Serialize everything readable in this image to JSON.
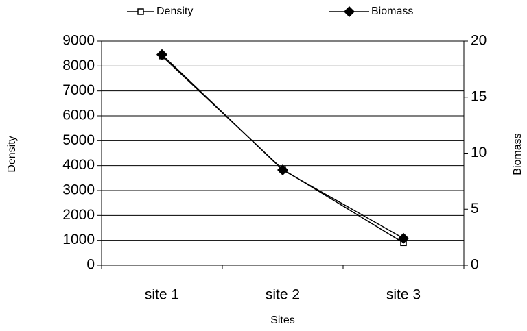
{
  "chart_data": {
    "type": "line",
    "categories": [
      "site 1",
      "site 2",
      "site 3"
    ],
    "series": [
      {
        "name": "Density",
        "color": "#000000",
        "marker": "square",
        "values": [
          8400,
          3850,
          900
        ]
      },
      {
        "name": "Biomass",
        "color": "#000000",
        "marker": "diamond",
        "axis": "y2",
        "values": [
          18.8,
          8.5,
          2.4
        ]
      }
    ],
    "x_label": "Sites",
    "y_label": "Density",
    "y2_label": "Biomass",
    "ylim": [
      0,
      9000
    ],
    "yticks": [
      0,
      1000,
      2000,
      3000,
      4000,
      5000,
      6000,
      7000,
      8000,
      9000
    ],
    "y2lim": [
      0,
      20
    ],
    "y2ticks": [
      0,
      5,
      10,
      15,
      20
    ],
    "grid": true,
    "legend": "top"
  }
}
